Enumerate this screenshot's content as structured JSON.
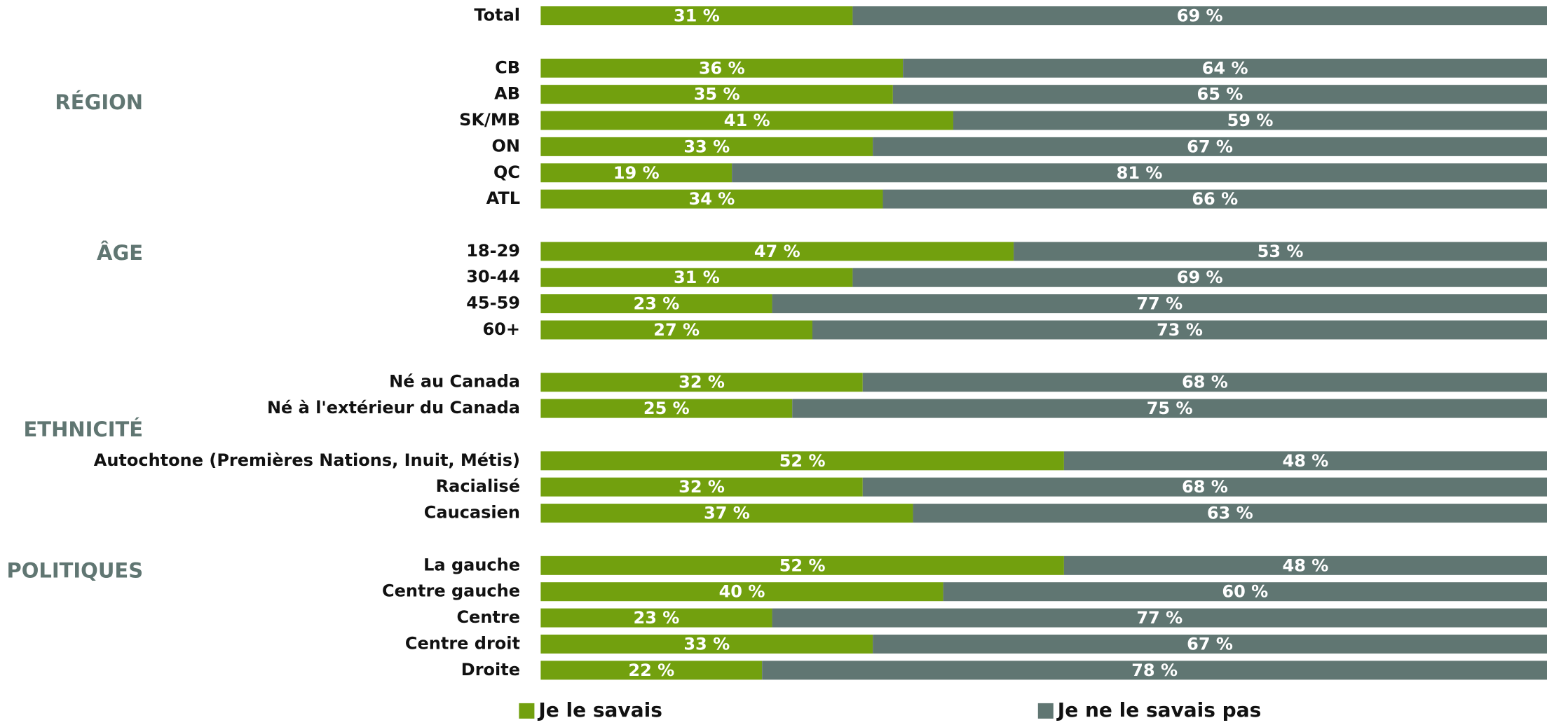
{
  "chart_data": {
    "type": "stacked-barh",
    "categories": [
      "Total",
      "CB",
      "AB",
      "SK/MB",
      "ON",
      "QC",
      "ATL",
      "18-29",
      "30-44",
      "45-59",
      "60+",
      "Né au Canada",
      "Né à l'extérieur du Canada",
      "Autochtone (Premières Nations, Inuit, Métis)",
      "Racialisé",
      "Caucasien",
      "La gauche",
      "Centre gauche",
      "Centre",
      "Centre droit",
      "Droite"
    ],
    "groups": [
      "RÉGION",
      "ÂGE",
      "ETHNICITÉ",
      "POLITIQUES"
    ],
    "xlim": [
      0,
      100
    ],
    "series": [
      {
        "name": "Je le savais",
        "color": "#72a00e",
        "values": [
          31,
          36,
          35,
          41,
          33,
          19,
          34,
          47,
          31,
          23,
          27,
          32,
          25,
          52,
          32,
          37,
          52,
          40,
          23,
          33,
          22
        ],
        "value_labels": [
          "31 %",
          "36 %",
          "35 %",
          "41 %",
          "33 %",
          "19 %",
          "34 %",
          "47 %",
          "31 %",
          "23 %",
          "27 %",
          "32 %",
          "25 %",
          "52 %",
          "32 %",
          "37 %",
          "52 %",
          "40 %",
          "23 %",
          "33 %",
          "22 %"
        ]
      },
      {
        "name": "Je ne le savais pas",
        "color": "#607672",
        "values": [
          69,
          64,
          65,
          59,
          67,
          81,
          66,
          53,
          69,
          77,
          73,
          68,
          75,
          48,
          68,
          63,
          48,
          60,
          77,
          67,
          78
        ],
        "value_labels": [
          "69 %",
          "64 %",
          "65 %",
          "59 %",
          "67 %",
          "81 %",
          "66 %",
          "53 %",
          "69 %",
          "77 %",
          "73 %",
          "68 %",
          "75 %",
          "48 %",
          "68 %",
          "63 %",
          "48 %",
          "60 %",
          "77 %",
          "67 %",
          "78 %"
        ]
      }
    ]
  }
}
